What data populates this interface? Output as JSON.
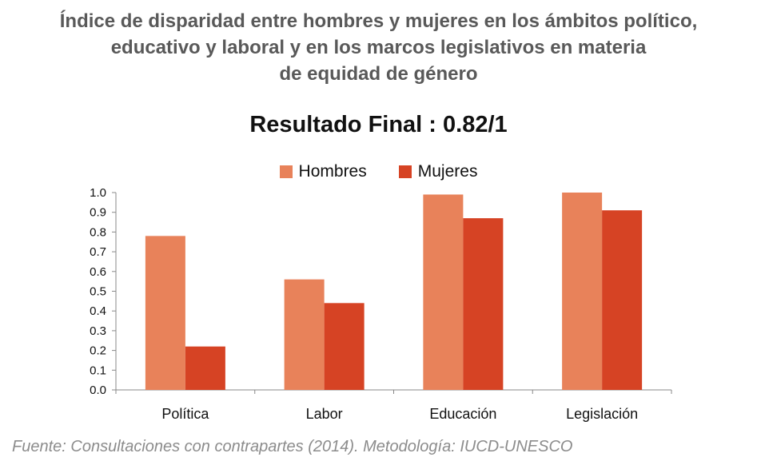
{
  "header": {
    "title_lines": [
      "Índice de disparidad entre hombres y mujeres en los ámbitos político,",
      "educativo y laboral y en los marcos legislativos en materia",
      "de equidad de género"
    ],
    "subtitle": "Resultado Final : 0.82/1"
  },
  "source": "Fuente: Consultaciones con contrapartes (2014). Metodología: IUCD-UNESCO",
  "chart_data": {
    "type": "bar",
    "categories": [
      "Política",
      "Labor",
      "Educación",
      "Legislación"
    ],
    "series": [
      {
        "name": "Hombres",
        "color": "#E8825A",
        "values": [
          0.78,
          0.56,
          0.99,
          1.0
        ]
      },
      {
        "name": "Mujeres",
        "color": "#D64324",
        "values": [
          0.22,
          0.44,
          0.87,
          0.91
        ]
      }
    ],
    "ylim": [
      0,
      1.0
    ],
    "yticks": [
      "0.0",
      "0.1",
      "0.2",
      "0.3",
      "0.4",
      "0.5",
      "0.6",
      "0.7",
      "0.8",
      "0.9",
      "1.0"
    ],
    "legend_position": "top-center",
    "grid": false
  }
}
